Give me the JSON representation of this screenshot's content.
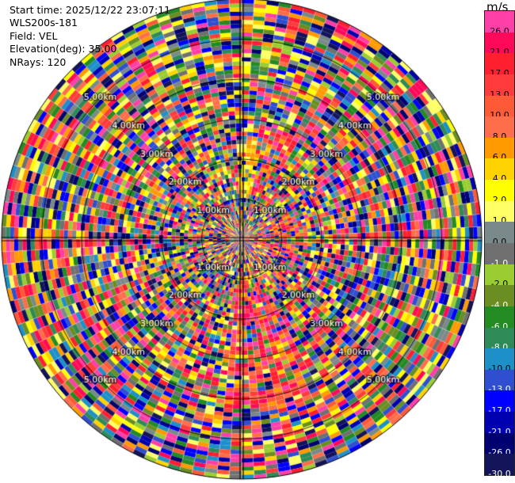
{
  "header": {
    "start_time": "Start time: 2025/12/22 23:07:11",
    "instrument": "WLS200s-181",
    "field": "Field: VEL",
    "elevation": "Elevation(deg): 35.00",
    "nrays": "NRays: 120"
  },
  "colorbar": {
    "unit": "m/s",
    "levels": [
      {
        "label": "26.0",
        "color": "#ff3fa8"
      },
      {
        "label": "21.0",
        "color": "#ff0a5a"
      },
      {
        "label": "17.0",
        "color": "#ff1f2e"
      },
      {
        "label": "13.0",
        "color": "#ff3b3b"
      },
      {
        "label": "10.0",
        "color": "#ff5a38"
      },
      {
        "label": "8.0",
        "color": "#ff6e4a"
      },
      {
        "label": "6.0",
        "color": "#ff9a00"
      },
      {
        "label": "4.0",
        "color": "#ffd200"
      },
      {
        "label": "2.0",
        "color": "#ffff00"
      },
      {
        "label": "1.0",
        "color": "#ffff66"
      },
      {
        "label": "0.0",
        "color": "#7a8a8a"
      },
      {
        "label": "-1.0",
        "color": "#707070"
      },
      {
        "label": "-2.0",
        "color": "#9acd32"
      },
      {
        "label": "-4.0",
        "color": "#6b8e23"
      },
      {
        "label": "-6.0",
        "color": "#228b22"
      },
      {
        "label": "-8.0",
        "color": "#2e8b57"
      },
      {
        "label": "-10.0",
        "color": "#1e90c8"
      },
      {
        "label": "-13.0",
        "color": "#2f4fd0"
      },
      {
        "label": "-17.0",
        "color": "#0000ff"
      },
      {
        "label": "-21.0",
        "color": "#0000b0"
      },
      {
        "label": "-26.0",
        "color": "#000070"
      },
      {
        "label": "-30.0",
        "color": "#14145a"
      }
    ]
  },
  "range_rings": [
    {
      "label": "1.00km"
    },
    {
      "label": "2.00km"
    },
    {
      "label": "3.00km"
    },
    {
      "label": "4.00km"
    },
    {
      "label": "5.00km"
    }
  ],
  "ppi": {
    "rays": 120,
    "max_range_km": 6.0
  }
}
